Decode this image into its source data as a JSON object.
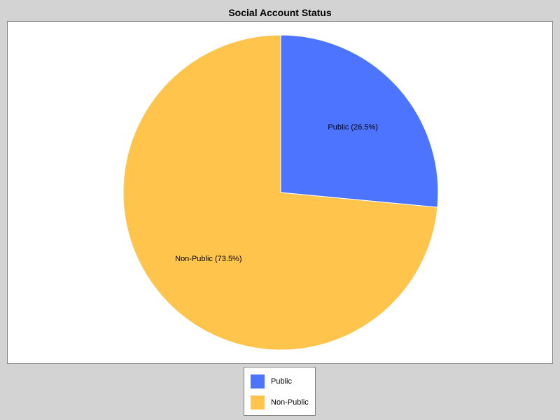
{
  "chart_data": {
    "type": "pie",
    "title": "Social Account Status",
    "slices": [
      {
        "label": "Public",
        "display": "Public (26.5%)",
        "value": 26.5,
        "color": "#4c74ff"
      },
      {
        "label": "Non-Public",
        "display": "Non-Public (73.5%)",
        "value": 73.5,
        "color": "#ffc44c"
      }
    ],
    "legend": {
      "position": "bottom",
      "items": [
        {
          "label": "Public",
          "color": "#4c74ff"
        },
        {
          "label": "Non-Public",
          "color": "#ffc44c"
        }
      ]
    }
  }
}
